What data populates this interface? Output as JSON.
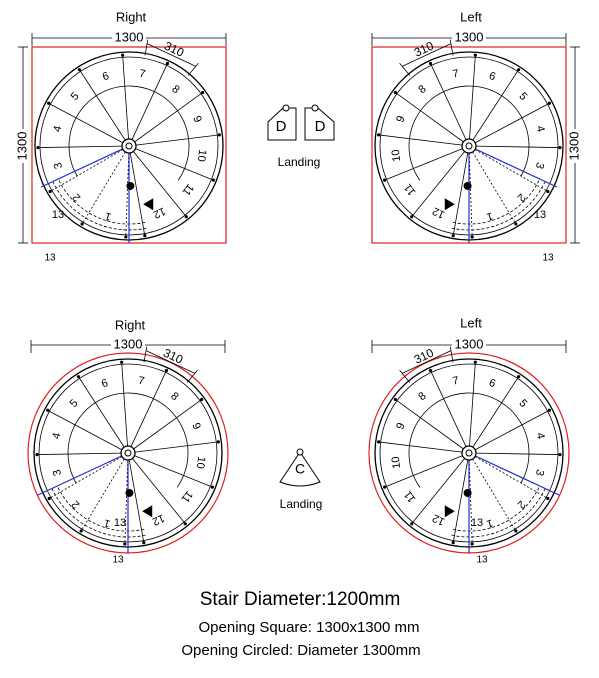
{
  "diagrams": [
    {
      "title": "Right",
      "width_dim": "1300",
      "height_dim": "1300",
      "tread_dim": "310",
      "step_labels": [
        "1",
        "2",
        "3",
        "4",
        "5",
        "6",
        "7",
        "8",
        "9",
        "10",
        "11",
        "12",
        "13"
      ],
      "outer_label": "13"
    },
    {
      "title": "Left",
      "width_dim": "1300",
      "height_dim": "1300",
      "tread_dim": "310",
      "step_labels": [
        "1",
        "2",
        "3",
        "4",
        "5",
        "6",
        "7",
        "8",
        "9",
        "10",
        "11",
        "12",
        "13"
      ],
      "outer_label": "13"
    },
    {
      "title": "Right",
      "width_dim": "1300",
      "tread_dim": "310",
      "step_labels": [
        "1",
        "2",
        "3",
        "4",
        "5",
        "6",
        "7",
        "8",
        "9",
        "10",
        "11",
        "12",
        "13"
      ],
      "outer_label": "13"
    },
    {
      "title": "Left",
      "width_dim": "1300",
      "tread_dim": "310",
      "step_labels": [
        "1",
        "2",
        "3",
        "4",
        "5",
        "6",
        "7",
        "8",
        "9",
        "10",
        "11",
        "12",
        "13"
      ],
      "outer_label": "13"
    }
  ],
  "landing_top": {
    "left_letter": "D",
    "right_letter": "D",
    "caption": "Landing"
  },
  "landing_bottom": {
    "letter": "C",
    "caption": "Landing"
  },
  "footer": {
    "diameter": "Stair Diameter:1200mm",
    "square": "Opening Square: 1300x1300 mm",
    "circled": "Opening Circled: Diameter 1300mm"
  }
}
